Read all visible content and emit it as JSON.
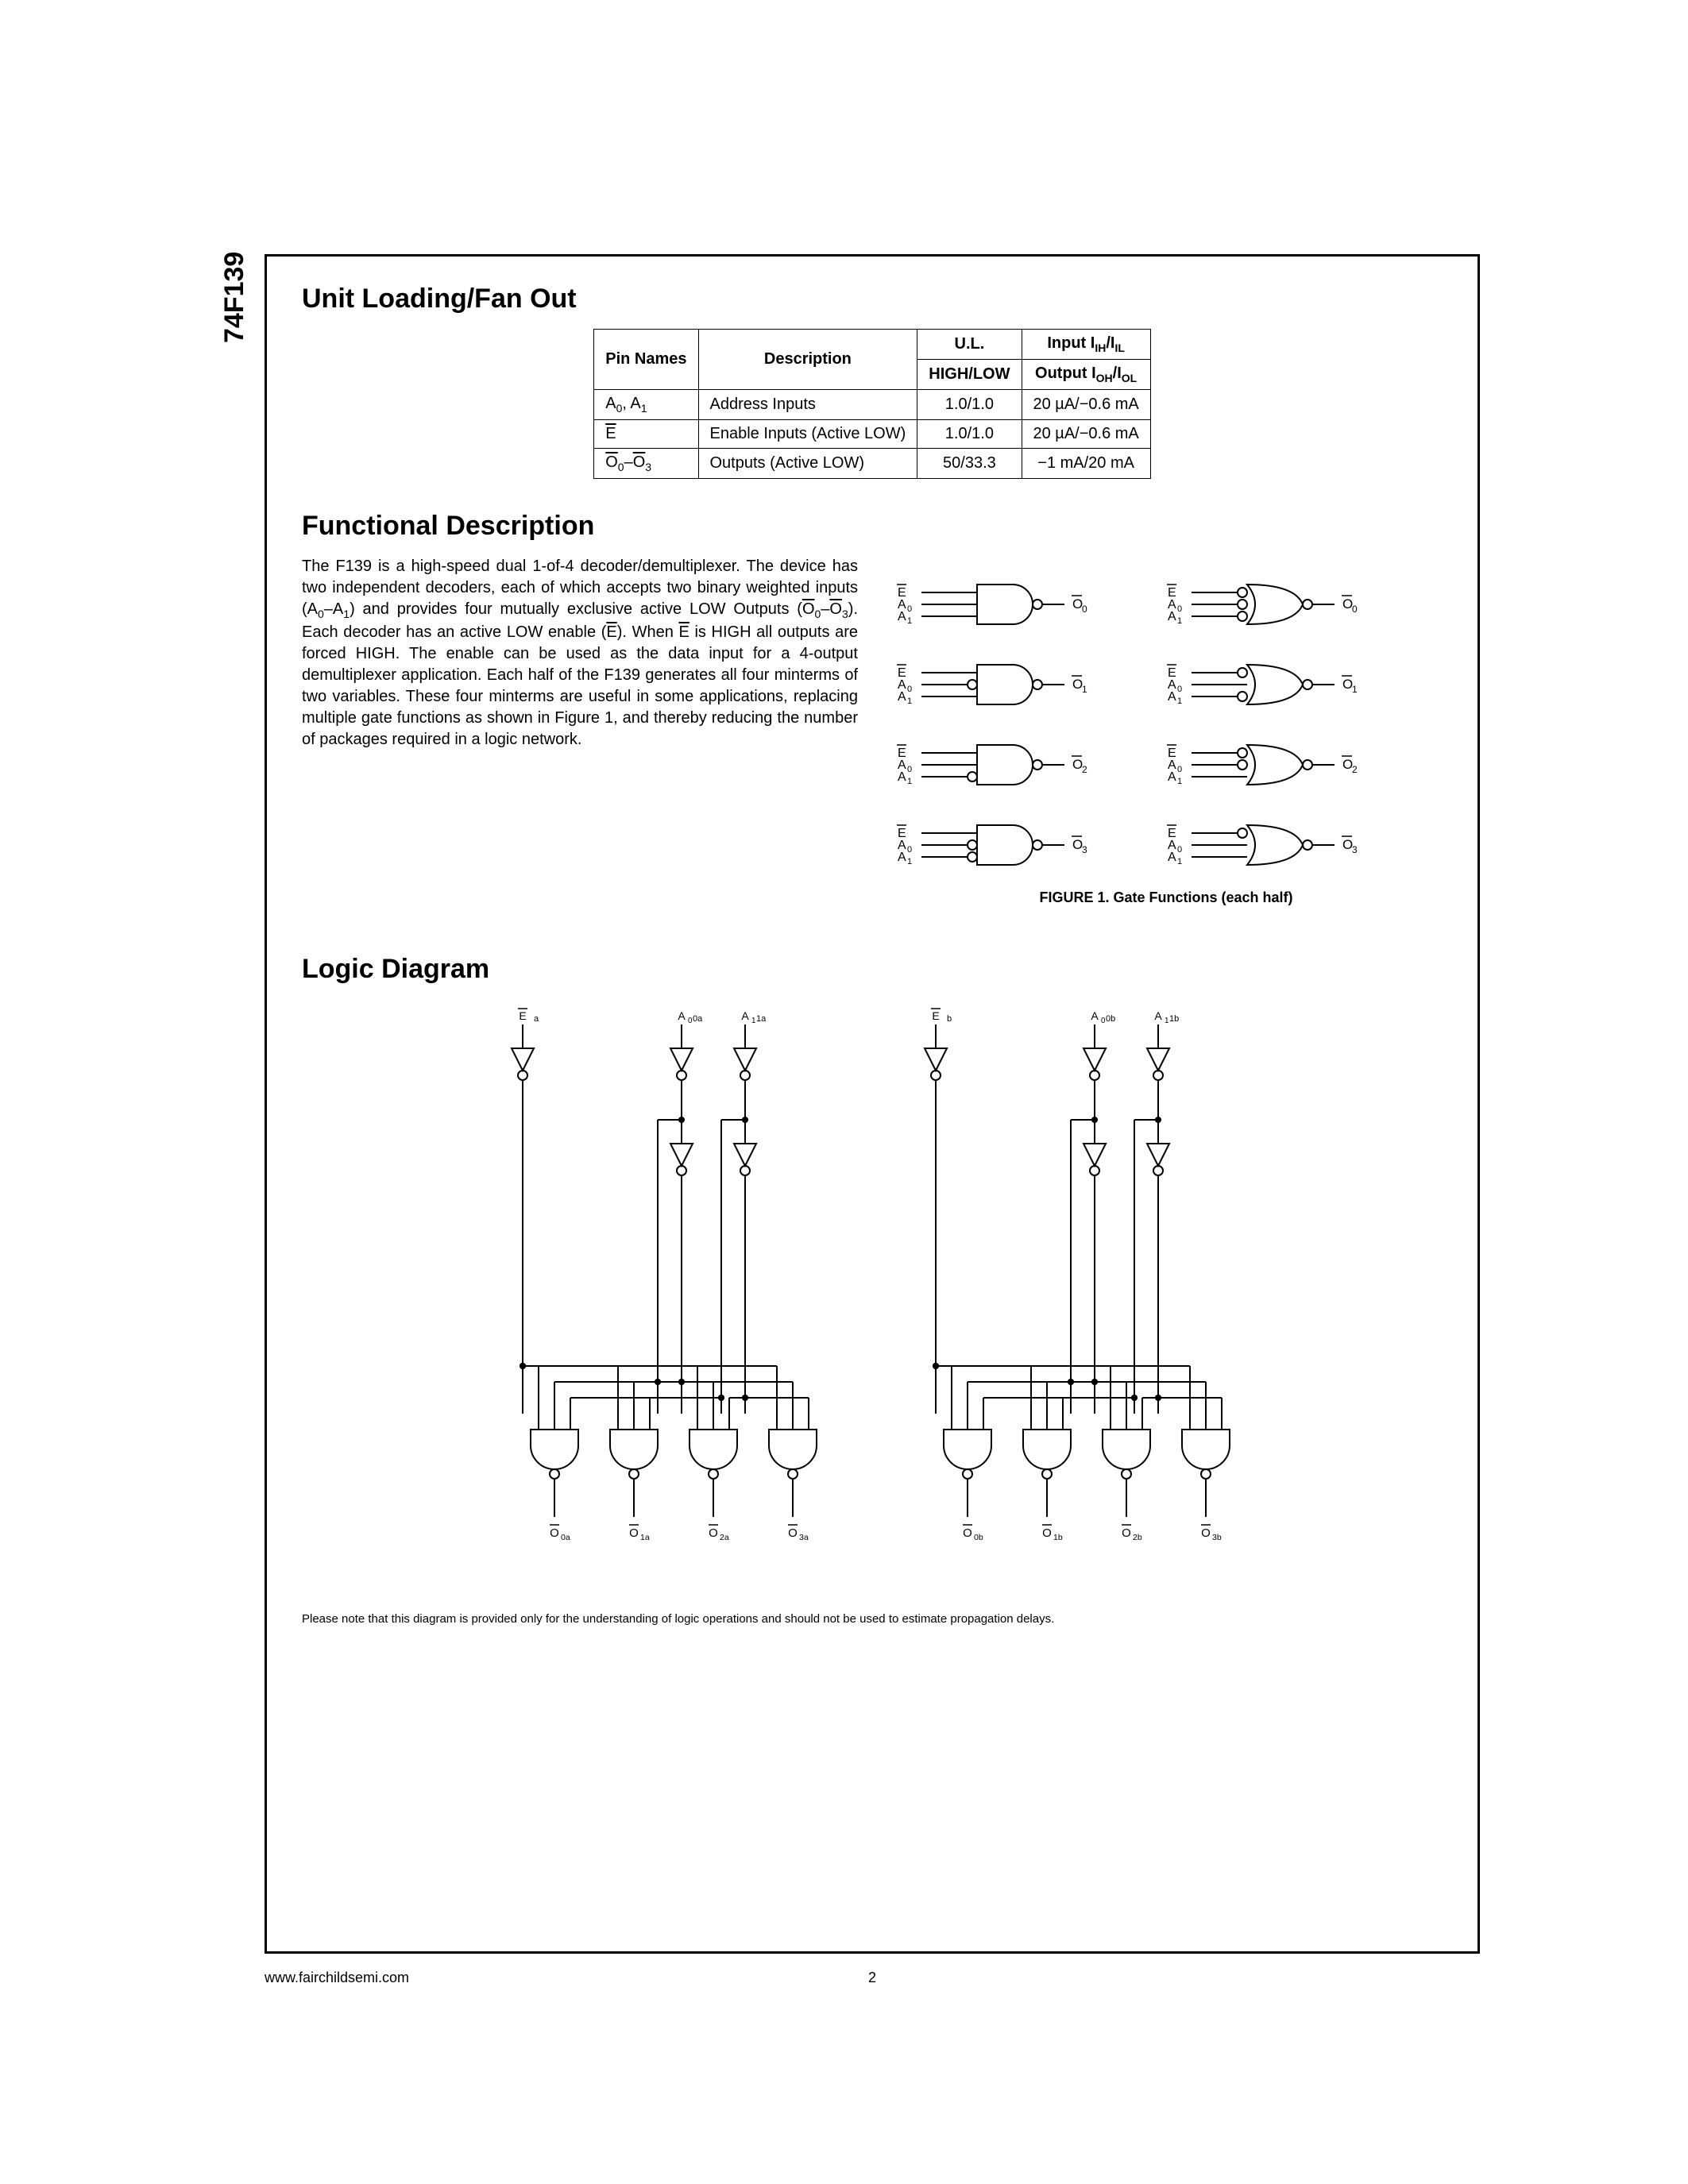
{
  "part_number": "74F139",
  "section1_title": "Unit Loading/Fan Out",
  "fanout_table": {
    "headers": {
      "pin": "Pin Names",
      "desc": "Description",
      "ul": "U.L.",
      "ul_sub": "HIGH/LOW",
      "io": "Input I",
      "io_sub": "Output I"
    },
    "rows": [
      {
        "pin_html": "A<sub>0</sub>, A<sub>1</sub>",
        "desc": "Address Inputs",
        "ul": "1.0/1.0",
        "io": "20 µA/−0.6 mA"
      },
      {
        "pin_html": "<span class=\"ovl\">E</span>",
        "desc": "Enable Inputs (Active LOW)",
        "ul": "1.0/1.0",
        "io": "20 µA/−0.6 mA"
      },
      {
        "pin_html": "<span class=\"ovl\">O</span><sub>0</sub>–<span class=\"ovl\">O</span><sub>3</sub>",
        "desc": "Outputs (Active LOW)",
        "ul": "50/33.3",
        "io": "−1 mA/20 mA"
      }
    ]
  },
  "section2_title": "Functional Description",
  "functional_text": "The F139 is a high-speed dual 1-of-4 decoder/demultiplexer. The device has two independent decoders, each of which accepts two binary weighted inputs (A<sub>0</sub>–A<sub>1</sub>) and provides four mutually exclusive active LOW Outputs (<span class=\"ovl\">O</span><sub>0</sub>–<span class=\"ovl\">O</span><sub>3</sub>). Each decoder has an active LOW enable (<span class=\"ovl\">E</span>). When <span class=\"ovl\">E</span> is HIGH all outputs are forced HIGH. The enable can be used as the data input for a 4-output demultiplexer application. Each half of the F139 generates all four minterms of two variables. These four minterms are useful in some applications, replacing multiple gate functions as shown in Figure 1, and thereby reducing the number of packages required in a logic network.",
  "figure1": {
    "caption": "FIGURE 1. Gate Functions (each half)",
    "left_gates": [
      {
        "inputs": [
          "E",
          "A0",
          "A1"
        ],
        "bubbles": [
          false,
          false,
          false
        ],
        "out": "O0"
      },
      {
        "inputs": [
          "E",
          "A0",
          "A1"
        ],
        "bubbles": [
          false,
          true,
          false
        ],
        "out": "O1"
      },
      {
        "inputs": [
          "E",
          "A0",
          "A1"
        ],
        "bubbles": [
          false,
          false,
          true
        ],
        "out": "O2"
      },
      {
        "inputs": [
          "E",
          "A0",
          "A1"
        ],
        "bubbles": [
          false,
          true,
          true
        ],
        "out": "O3"
      }
    ],
    "right_gates": [
      {
        "inputs": [
          "E",
          "A0",
          "A1"
        ],
        "bubbles": [
          true,
          true,
          true
        ],
        "out": "O0"
      },
      {
        "inputs": [
          "E",
          "A0",
          "A1"
        ],
        "bubbles": [
          true,
          false,
          true
        ],
        "out": "O1"
      },
      {
        "inputs": [
          "E",
          "A0",
          "A1"
        ],
        "bubbles": [
          true,
          true,
          false
        ],
        "out": "O2"
      },
      {
        "inputs": [
          "E",
          "A0",
          "A1"
        ],
        "bubbles": [
          true,
          false,
          false
        ],
        "out": "O3"
      }
    ]
  },
  "section3_title": "Logic Diagram",
  "logic_diagram": {
    "halves": [
      "a",
      "b"
    ],
    "inputs": [
      "E",
      "A0",
      "A1"
    ],
    "outputs": [
      "O0",
      "O1",
      "O2",
      "O3"
    ]
  },
  "diagram_note": "Please note that this diagram is provided only for the understanding of logic operations and should not be used to estimate propagation delays.",
  "footer_url": "www.fairchildsemi.com",
  "page_number": "2"
}
